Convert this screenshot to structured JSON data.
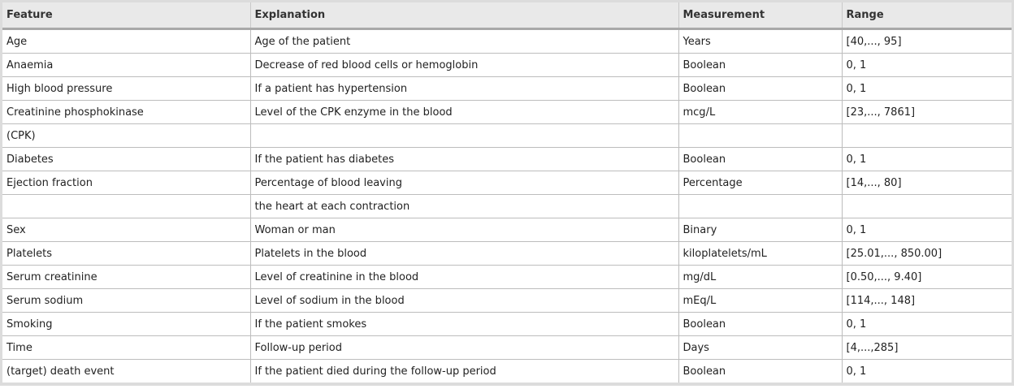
{
  "headers": [
    "Feature",
    "Explanation",
    "Measurement",
    "Range"
  ],
  "rows": [
    [
      "Age",
      "Age of the patient",
      "Years",
      "[40,..., 95]"
    ],
    [
      "Anaemia",
      "Decrease of red blood cells or hemoglobin",
      "Boolean",
      "0, 1"
    ],
    [
      "High blood pressure",
      "If a patient has hypertension",
      "Boolean",
      "0, 1"
    ],
    [
      "Creatinine phosphokinase",
      "Level of the CPK enzyme in the blood",
      "mcg/L",
      "[23,..., 7861]"
    ],
    [
      "(CPK)",
      "",
      "",
      ""
    ],
    [
      "Diabetes",
      "If the patient has diabetes",
      "Boolean",
      "0, 1"
    ],
    [
      "Ejection fraction",
      "Percentage of blood leaving",
      "Percentage",
      "[14,..., 80]"
    ],
    [
      "",
      "the heart at each contraction",
      "",
      ""
    ],
    [
      "Sex",
      "Woman or man",
      "Binary",
      "0, 1"
    ],
    [
      "Platelets",
      "Platelets in the blood",
      "kiloplatelets/mL",
      "[25.01,..., 850.00]"
    ],
    [
      "Serum creatinine",
      "Level of creatinine in the blood",
      "mg/dL",
      "[0.50,..., 9.40]"
    ],
    [
      "Serum sodium",
      "Level of sodium in the blood",
      "mEq/L",
      "[114,..., 148]"
    ],
    [
      "Smoking",
      "If the patient smokes",
      "Boolean",
      "0, 1"
    ],
    [
      "Time",
      "Follow-up period",
      "Days",
      "[4,...,285]"
    ],
    [
      "(target) death event",
      "If the patient died during the follow-up period",
      "Boolean",
      "0, 1"
    ]
  ]
}
